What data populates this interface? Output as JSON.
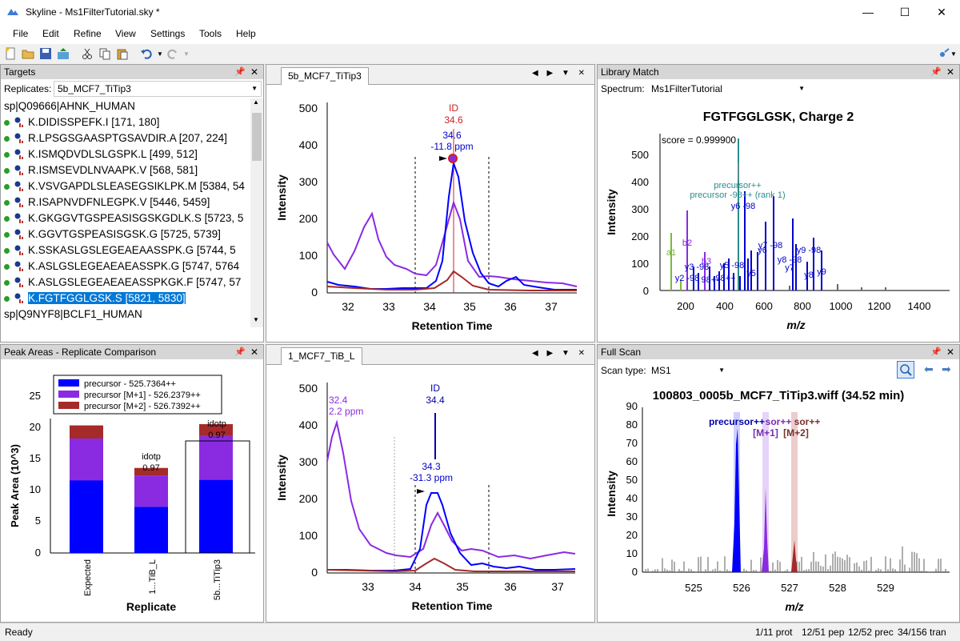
{
  "window": {
    "title": "Skyline - Ms1FilterTutorial.sky *",
    "min": "—",
    "max": "☐",
    "close": "✕"
  },
  "menu": [
    "File",
    "Edit",
    "Refine",
    "View",
    "Settings",
    "Tools",
    "Help"
  ],
  "targets": {
    "title": "Targets",
    "replicates_label": "Replicates:",
    "replicate_value": "5b_MCF7_TiTip3",
    "protein1": "sp|Q09666|AHNK_HUMAN",
    "peptides": [
      "K.DIDISSPEFK.I [171, 180]",
      "R.LPSGSGAASPTGSAVDIR.A [207, 224]",
      "K.ISMQDVDLSLGSPK.L [499, 512]",
      "R.ISMSEVDLNVAAPK.V [568, 581]",
      "K.VSVGAPDLSLEASEGSIKLPK.M [5384, 54",
      "R.ISAPNVDFNLEGPK.V [5446, 5459]",
      "K.GKGGVTGSPEASISGSKGDLK.S [5723, 5",
      "K.GGVTGSPEASISGSK.G [5725, 5739]",
      "K.SSKASLGSLEGEAEAASSPK.G [5744, 5",
      "K.ASLGSLEGEAEAEASSPK.G [5747, 5764",
      "K.ASLGSLEGEAEAEASSPKGK.F [5747, 57",
      "K.FGTFGGLGSK.S [5821, 5830]"
    ],
    "protein2": "sp|Q9NYF8|BCLF1_HUMAN"
  },
  "peak_areas": {
    "title": "Peak Areas - Replicate Comparison",
    "legend": [
      "precursor - 525.7364++",
      "precursor [M+1] - 526.2379++",
      "precursor [M+2] - 526.7392++"
    ],
    "ylabel": "Peak Area (10^3)",
    "xlabel": "Replicate",
    "yticks": [
      "0",
      "5",
      "10",
      "15",
      "20",
      "25"
    ],
    "categories": [
      "Expected",
      "1...TiB_L",
      "5b...TiTip3"
    ],
    "annot_label": "idotp",
    "annot_1": "0.97",
    "annot_2": "0.97"
  },
  "chrom_top": {
    "tab": "5b_MCF7_TiTip3",
    "id_label": "ID",
    "id_rt": "34.6",
    "peak_rt": "34.6",
    "peak_ppm": "-11.8 ppm",
    "ylabel": "Intensity",
    "xlabel": "Retention Time",
    "yticks": [
      "0",
      "100",
      "200",
      "300",
      "400",
      "500"
    ],
    "xticks": [
      "32",
      "33",
      "34",
      "35",
      "36",
      "37"
    ]
  },
  "chrom_bottom": {
    "tab": "1_MCF7_TiB_L",
    "id_label": "ID",
    "id_rt": "34.4",
    "peak_rt": "34.3",
    "peak_ppm": "-31.3 ppm",
    "left_rt": "32.4",
    "left_ppm": "2.2 ppm",
    "ylabel": "Intensity",
    "xlabel": "Retention Time",
    "yticks": [
      "0",
      "100",
      "200",
      "300",
      "400",
      "500"
    ],
    "xticks": [
      "33",
      "34",
      "35",
      "36",
      "37"
    ]
  },
  "library": {
    "title": "Library Match",
    "spectrum_label": "Spectrum:",
    "spectrum_value": "Ms1FilterTutorial",
    "heading": "FGTFGGLGSK, Charge 2",
    "score": "score = 0.999900",
    "ylabel": "Intensity",
    "xlabel": "m/z",
    "yticks": [
      "0",
      "100",
      "200",
      "300",
      "400",
      "500"
    ],
    "xticks": [
      "200",
      "400",
      "600",
      "800",
      "1000",
      "1200",
      "1400"
    ],
    "labels": {
      "prec": "precursor++",
      "prec2": "precursor -98++ (rank 1)",
      "y6": "y6 -98",
      "y7": "y7 -98",
      "y6b": "y6",
      "y8": "y8 -98",
      "y9": "y9 -98",
      "y7b": "y7",
      "y8b": "y8",
      "y9b": "y9",
      "b2": "b2",
      "a1": "a1",
      "b3": "b3",
      "y3": "y3 -98",
      "y5": "y5 -98",
      "y2": "y2 -98",
      "b398": "98++",
      "misc": "98++",
      "y5b": "y5"
    }
  },
  "fullscan": {
    "title": "Full Scan",
    "scan_type_label": "Scan type:",
    "scan_type_value": "MS1",
    "heading": "100803_0005b_MCF7_TiTip3.wiff  (34.52 min)",
    "label_prec": "precursor++",
    "label_sor1": "sor++",
    "label_sor2": "sor++",
    "label_m1": "[M+1]",
    "label_m2": "[M+2]",
    "ylabel": "Intensity",
    "xlabel": "m/z",
    "yticks": [
      "0",
      "10",
      "20",
      "30",
      "40",
      "50",
      "60",
      "70",
      "80",
      "90"
    ],
    "xticks": [
      "525",
      "526",
      "527",
      "528",
      "529"
    ]
  },
  "status": {
    "ready": "Ready",
    "prot": "1/11 prot",
    "pep": "12/51 pep",
    "prec": "12/52 prec",
    "tran": "34/156 tran"
  },
  "colors": {
    "blue": "#0000ff",
    "purple": "#8a2be2",
    "brown": "#a52a2a",
    "teal": "#2b8c8c",
    "green": "#7db83a"
  }
}
